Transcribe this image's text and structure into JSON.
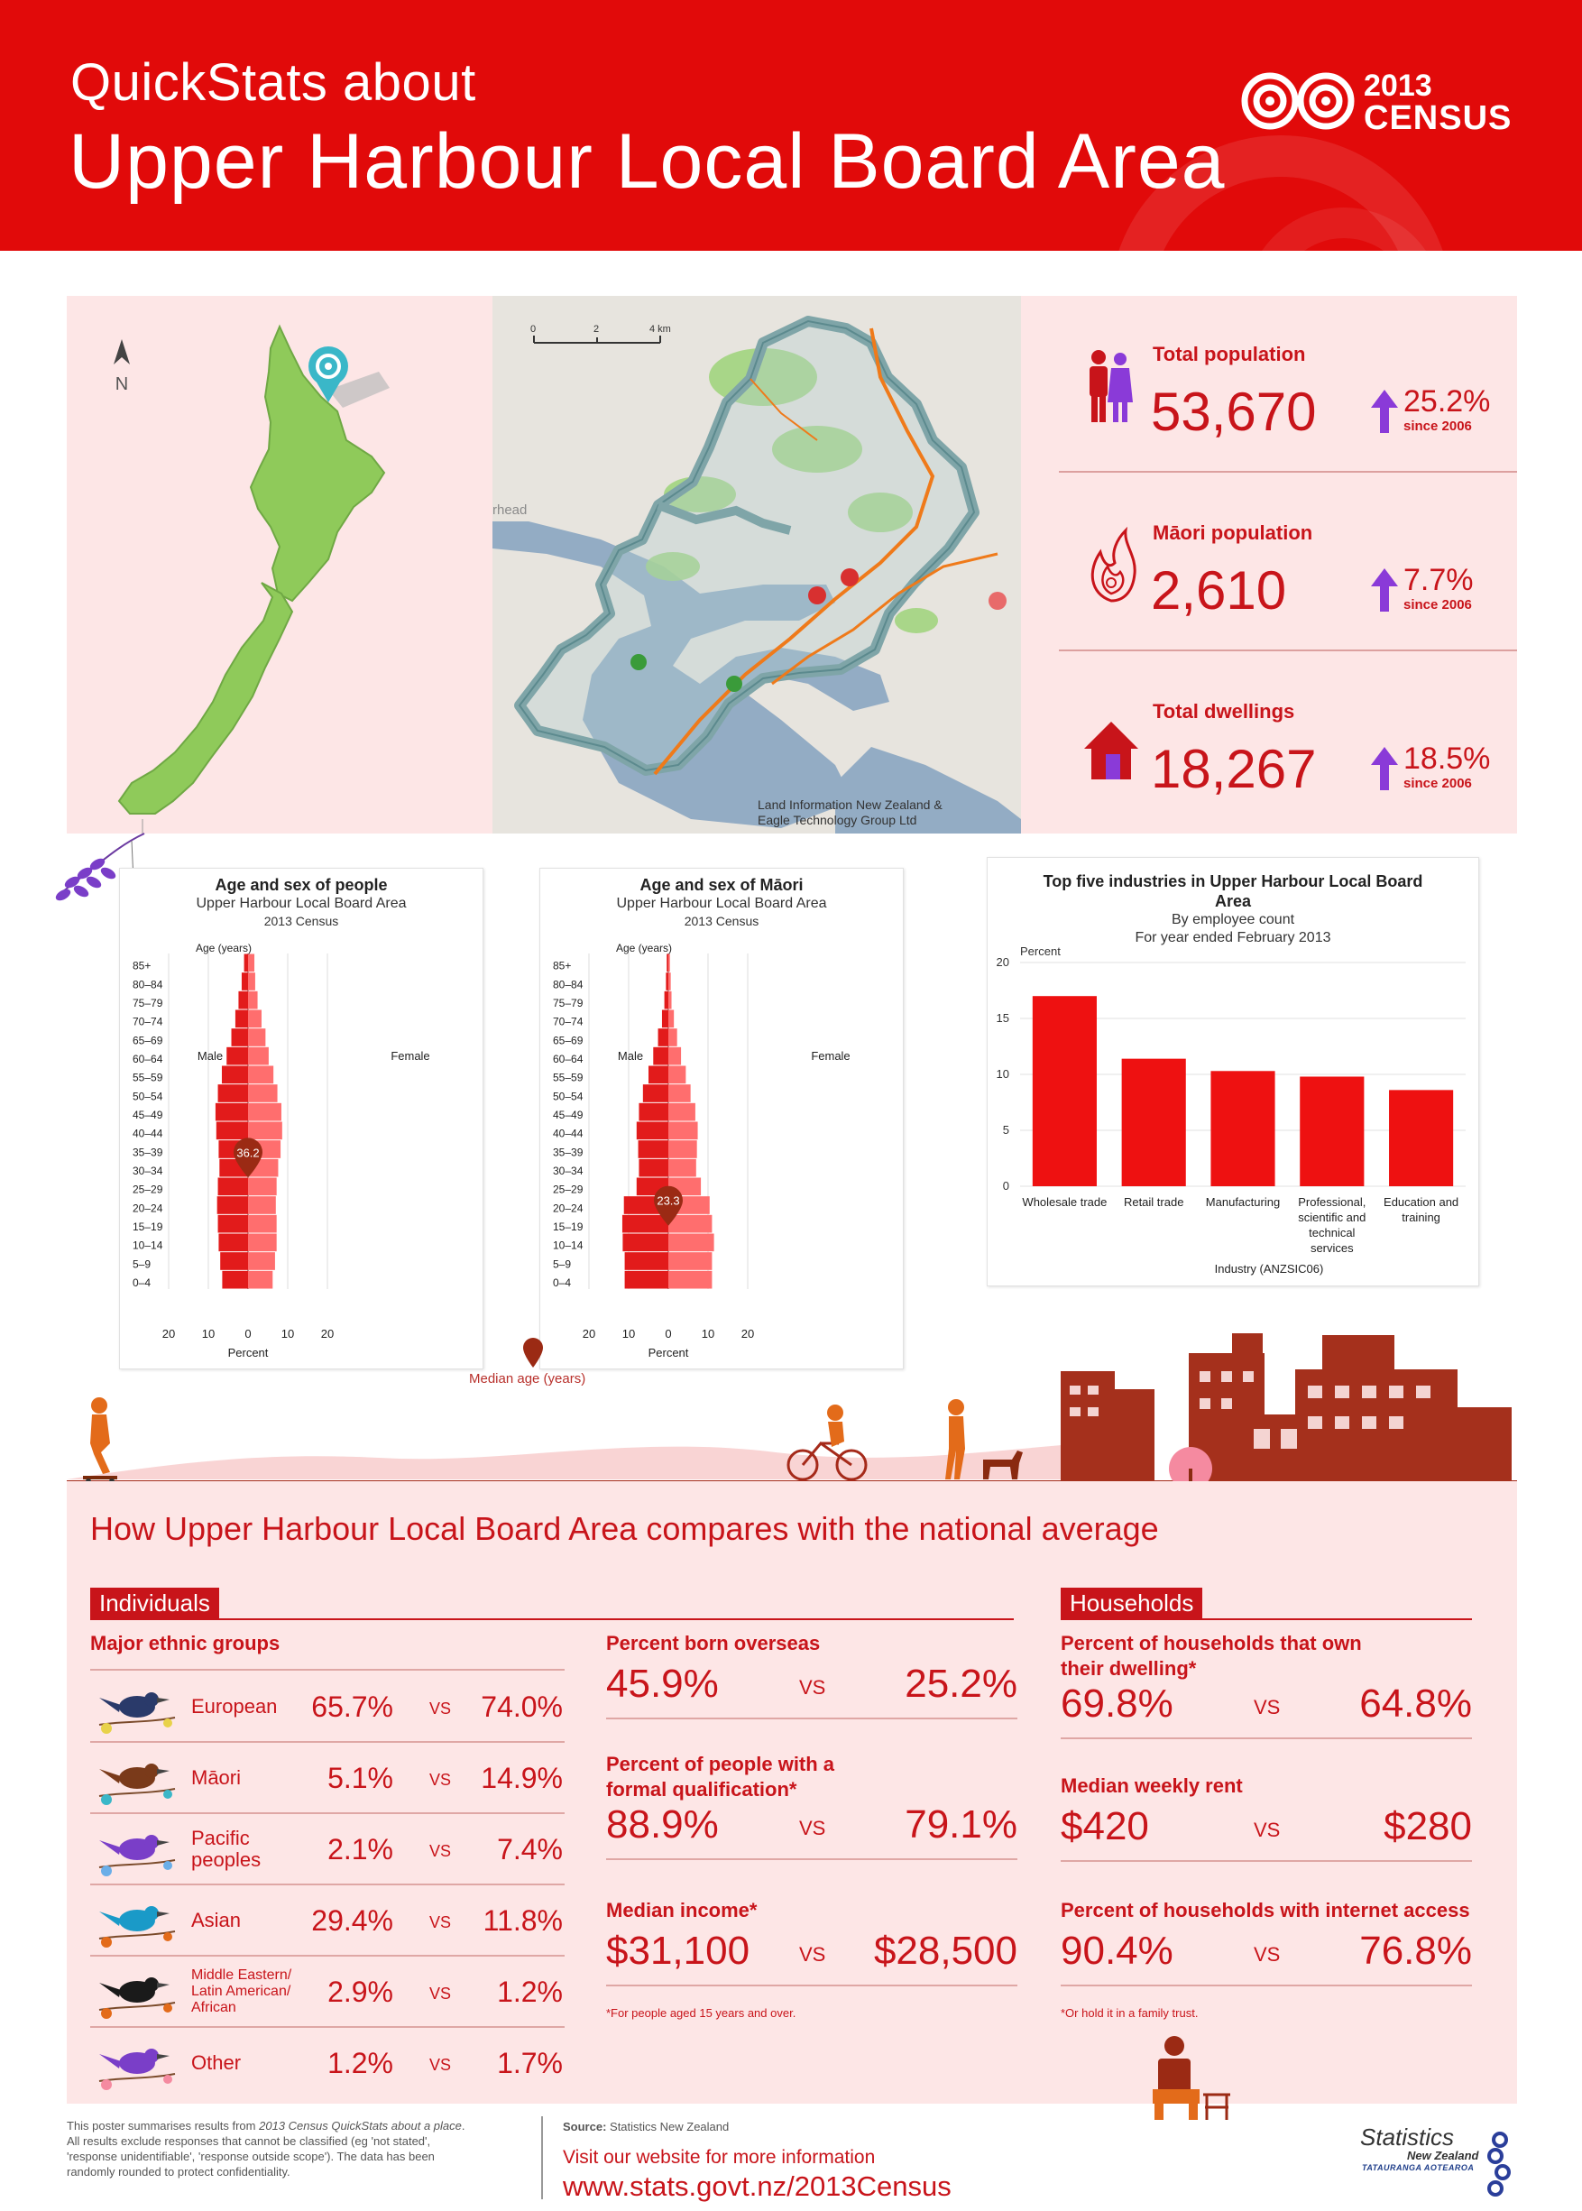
{
  "header": {
    "quickstats": "QuickStats about",
    "title": "Upper Harbour Local Board Area",
    "census_year": "2013",
    "census_word": "CENSUS"
  },
  "map": {
    "north": "N",
    "credit_line1": "Land Information New Zealand &",
    "credit_line2": "Eagle Technology Group Ltd",
    "scale_0": "0",
    "scale_2": "2",
    "scale_4": "4 km",
    "place_fragment": "rhead"
  },
  "stats": [
    {
      "label": "Total population",
      "value": "53,670",
      "change": "25.2%",
      "since": "since 2006"
    },
    {
      "label": "Māori population",
      "value": "2,610",
      "change": "7.7%",
      "since": "since 2006"
    },
    {
      "label": "Total dwellings",
      "value": "18,267",
      "change": "18.5%",
      "since": "since 2006"
    }
  ],
  "colors": {
    "brand_red": "#e10a0a",
    "text_red": "#c8141a",
    "pink_panel": "#fde6e6",
    "male_bar": "#e21b1b",
    "female_bar": "#ff6e6e",
    "arrow_purple": "#8a3ad8"
  },
  "chart_data": [
    {
      "type": "bar",
      "subtype": "population-pyramid",
      "title": "Age and sex of people",
      "subtitle": "Upper Harbour Local Board Area",
      "subtitle2": "2013 Census",
      "ylabel": "Age (years)",
      "xlabel": "Percent",
      "left_label": "Male",
      "right_label": "Female",
      "xlim": [
        -20,
        20
      ],
      "x_ticks": [
        "20",
        "10",
        "0",
        "10",
        "20"
      ],
      "categories": [
        "0–4",
        "5–9",
        "10–14",
        "15–19",
        "20–24",
        "25–29",
        "30–34",
        "35–39",
        "40–44",
        "45–49",
        "50–54",
        "55–59",
        "60–64",
        "65–69",
        "70–74",
        "75–79",
        "80–84",
        "85+"
      ],
      "series": [
        {
          "name": "Male",
          "values": [
            6.5,
            7.0,
            7.4,
            7.6,
            7.8,
            7.6,
            7.2,
            7.4,
            8.0,
            8.2,
            7.6,
            6.6,
            5.4,
            4.2,
            3.2,
            2.4,
            1.6,
            1.0
          ]
        },
        {
          "name": "Female",
          "values": [
            6.2,
            6.8,
            7.2,
            7.2,
            7.0,
            7.2,
            7.6,
            8.2,
            8.6,
            8.4,
            7.4,
            6.4,
            5.2,
            4.4,
            3.4,
            2.4,
            1.8,
            1.6
          ]
        }
      ],
      "median_age": "36.2",
      "median_value": 36.2
    },
    {
      "type": "bar",
      "subtype": "population-pyramid",
      "title": "Age and sex of Māori",
      "subtitle": "Upper Harbour Local Board Area",
      "subtitle2": "2013 Census",
      "ylabel": "Age (years)",
      "xlabel": "Percent",
      "left_label": "Male",
      "right_label": "Female",
      "xlim": [
        -20,
        20
      ],
      "x_ticks": [
        "20",
        "10",
        "0",
        "10",
        "20"
      ],
      "categories": [
        "0–4",
        "5–9",
        "10–14",
        "15–19",
        "20–24",
        "25–29",
        "30–34",
        "35–39",
        "40–44",
        "45–49",
        "50–54",
        "55–59",
        "60–64",
        "65–69",
        "70–74",
        "75–79",
        "80–84",
        "85+"
      ],
      "series": [
        {
          "name": "Male",
          "values": [
            11.0,
            11.0,
            11.5,
            11.6,
            11.2,
            8.0,
            7.4,
            7.6,
            8.0,
            7.4,
            6.4,
            5.0,
            3.8,
            2.6,
            1.6,
            1.0,
            0.6,
            0.4
          ]
        },
        {
          "name": "Female",
          "values": [
            11.0,
            11.0,
            11.5,
            11.0,
            10.4,
            8.2,
            7.0,
            7.2,
            7.4,
            6.8,
            5.6,
            4.4,
            3.2,
            2.2,
            1.4,
            0.8,
            0.6,
            0.4
          ]
        }
      ],
      "median_age": "23.3",
      "median_value": 23.3
    },
    {
      "type": "bar",
      "title": "Top five industries in Upper Harbour Local Board",
      "title_line2": "Area",
      "subtitle": "By employee count",
      "subtitle2": "For year ended February 2013",
      "ylabel": "Percent",
      "xlabel": "Industry (ANZSIC06)",
      "ylim": [
        0,
        20
      ],
      "y_ticks": [
        "0",
        "5",
        "10",
        "15",
        "20"
      ],
      "categories": [
        [
          "Wholesale trade"
        ],
        [
          "Retail trade"
        ],
        [
          "Manufacturing"
        ],
        [
          "Professional,",
          "scientific and",
          "technical",
          "services"
        ],
        [
          "Education and",
          "training"
        ]
      ],
      "values": [
        17.0,
        11.4,
        10.3,
        9.8,
        8.6
      ]
    }
  ],
  "median_legend": "Median age (years)",
  "compare": {
    "title": "How Upper Harbour Local Board Area compares with the national average",
    "individuals_tag": "Individuals",
    "households_tag": "Households",
    "ethnic_head": "Major ethnic groups",
    "vs": "VS",
    "ethnic": [
      {
        "name_lines": [
          "European"
        ],
        "local": "65.7%",
        "national": "74.0%",
        "bird": "tui-bird-icon"
      },
      {
        "name_lines": [
          "Māori"
        ],
        "local": "5.1%",
        "national": "14.9%",
        "bird": "kiwi-bird-icon"
      },
      {
        "name_lines": [
          "Pacific",
          "peoples"
        ],
        "local": "2.1%",
        "national": "7.4%",
        "bird": "pacific-bird-icon"
      },
      {
        "name_lines": [
          "Asian"
        ],
        "local": "29.4%",
        "national": "11.8%",
        "bird": "kingfisher-bird-icon"
      },
      {
        "name_lines": [
          "Middle Eastern/",
          "Latin American/",
          "African"
        ],
        "local": "2.9%",
        "national": "1.2%",
        "bird": "toucan-bird-icon"
      },
      {
        "name_lines": [
          "Other"
        ],
        "local": "1.2%",
        "national": "1.7%",
        "bird": "flower-branch-icon"
      }
    ],
    "middle": [
      {
        "head_lines": [
          "Percent born overseas"
        ],
        "local": "45.9%",
        "national": "25.2%"
      },
      {
        "head_lines": [
          "Percent of people with a",
          "formal qualification*"
        ],
        "local": "88.9%",
        "national": "79.1%"
      },
      {
        "head_lines": [
          "Median income*"
        ],
        "local": "$31,100",
        "national": "$28,500"
      }
    ],
    "middle_note": "*For people aged 15 years and over.",
    "households": [
      {
        "head_lines": [
          "Percent of households that own",
          "their dwelling*"
        ],
        "local": "69.8%",
        "national": "64.8%"
      },
      {
        "head_lines": [
          "Median weekly rent"
        ],
        "local": "$420",
        "national": "$280"
      },
      {
        "head_lines": [
          "Percent of households with internet access"
        ],
        "local": "90.4%",
        "national": "76.8%"
      }
    ],
    "households_note": "*Or hold it in a family trust."
  },
  "footer": {
    "left_line1_a": "This poster summarises results from ",
    "left_line1_b": "2013 Census QuickStats about a place",
    "left_line1_c": ".",
    "left_line2": "All results exclude responses that cannot be classified (eg 'not stated',",
    "left_line3": "'response unidentifiable', 'response outside scope'). The data has been",
    "left_line4": "randomly rounded to protect confidentiality.",
    "source_label": "Source:",
    "source_value": " Statistics New Zealand",
    "visit": "Visit our website for more information",
    "url": "www.stats.govt.nz/2013Census",
    "logo_line1": "Statistics",
    "logo_line2": "New Zealand",
    "logo_line3": "TATAURANGA AOTEAROA"
  }
}
